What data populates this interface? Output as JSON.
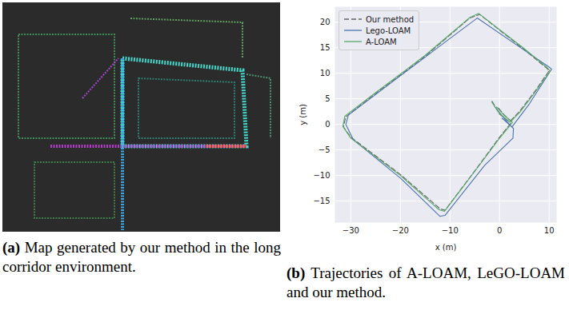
{
  "chart_data": {
    "type": "line",
    "xlabel": "x (m)",
    "ylabel": "y (m)",
    "xlim": [
      -33.2,
      11.5
    ],
    "ylim": [
      -19.2,
      23
    ],
    "xticks": [
      -30,
      -20,
      -10,
      0,
      10
    ],
    "yticks": [
      -15,
      -10,
      -5,
      0,
      5,
      10,
      15,
      20
    ],
    "grid": true,
    "legend": "upper left",
    "series": [
      {
        "name": "Our method",
        "color": "#666666",
        "line_style": "dashed",
        "x": [
          -1.5,
          0,
          2,
          4,
          7,
          10,
          9.5,
          5,
          -4,
          -6,
          -15,
          -25,
          -31,
          -31.5,
          -30,
          -20,
          -12,
          -11,
          -5,
          0,
          2.5,
          1,
          -0.5
        ],
        "values": [
          4.5,
          2,
          0.5,
          2.5,
          6.3,
          10.5,
          11,
          14.6,
          21.5,
          20.8,
          13.3,
          6,
          1.5,
          -0.5,
          -2.5,
          -9.8,
          -16.5,
          -16.8,
          -9.1,
          -2.5,
          0.5,
          1.8,
          3.5
        ]
      },
      {
        "name": "Lego-LOAM",
        "color": "#4c72b0",
        "line_style": "solid",
        "x": [
          -1,
          1.5,
          2.5,
          6,
          10.5,
          10,
          5,
          -4.5,
          -10,
          -20,
          -30.5,
          -31,
          -29.5,
          -20,
          -12,
          -11,
          -3,
          2.7,
          2.8,
          1,
          0.5
        ],
        "values": [
          3.5,
          0.5,
          -0.5,
          4,
          10.8,
          11.2,
          14.5,
          20.8,
          16.8,
          9.5,
          1.8,
          0,
          -3,
          -10.5,
          -18,
          -17.8,
          -8,
          -2.7,
          -0.8,
          0.8,
          1.2
        ]
      },
      {
        "name": "A-LOAM",
        "color": "#55a868",
        "line_style": "solid",
        "x": [
          -1.6,
          0,
          2.1,
          4.1,
          7.1,
          10.2,
          9.6,
          5,
          -4.2,
          -6,
          -15,
          -25,
          -31.2,
          -31.6,
          -30,
          -20,
          -12.2,
          -11.1,
          -5,
          0.1,
          2.6,
          1,
          -0.6
        ],
        "values": [
          4.4,
          2.1,
          0.4,
          2.4,
          6.2,
          10.4,
          11.1,
          14.8,
          21.7,
          20.9,
          13.5,
          6.2,
          1.6,
          -0.4,
          -2.7,
          -10,
          -16.7,
          -17,
          -9.2,
          -2.6,
          0.4,
          1.7,
          3.4
        ]
      }
    ]
  },
  "captions": [
    {
      "label": "(a)",
      "text": "Map generated by our method in the long corridor environment."
    },
    {
      "label": "(b)",
      "text": "Trajectories of A-LOAM, LeGO-LOAM and our method."
    }
  ]
}
